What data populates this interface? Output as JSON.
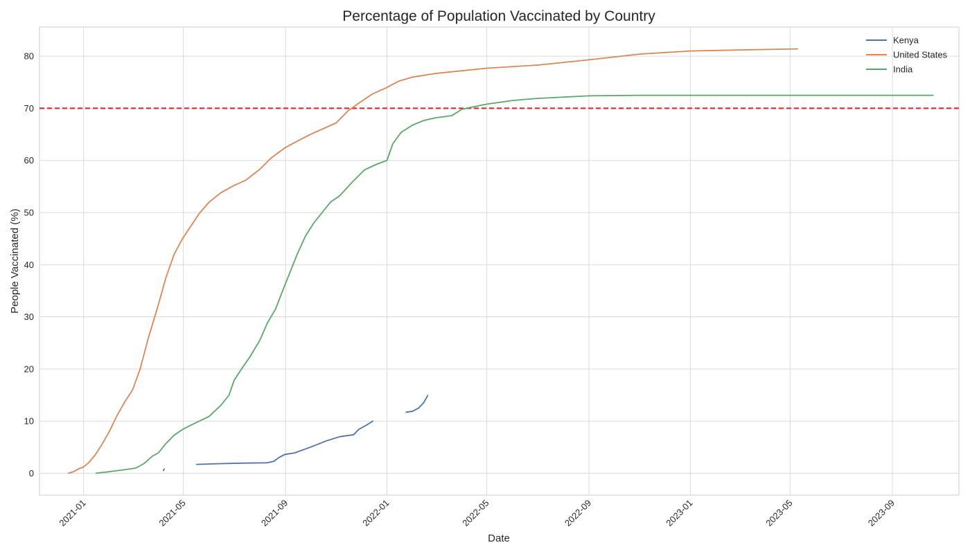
{
  "chart_data": {
    "type": "line",
    "title": "Percentage of Population Vaccinated by Country",
    "xlabel": "Date",
    "ylabel": "People Vaccinated (%)",
    "xlim": [
      "2020-11-09",
      "2023-11-20"
    ],
    "ylim": [
      -4.2,
      85.6
    ],
    "x_ticks": [
      "2021-01",
      "2021-05",
      "2021-09",
      "2022-01",
      "2022-05",
      "2022-09",
      "2023-01",
      "2023-05",
      "2023-09"
    ],
    "y_ticks": [
      0,
      10,
      20,
      30,
      40,
      50,
      60,
      70,
      80
    ],
    "grid": true,
    "legend_position": "top-right",
    "reference_line": {
      "y": 70,
      "color": "#e31a1c",
      "style": "dashed"
    },
    "series": [
      {
        "name": "Kenya",
        "color": "#4c72b0",
        "segments": [
          [
            [
              "2021-04-07",
              0.5
            ],
            [
              "2021-04-08",
              0.8
            ]
          ],
          [
            [
              "2021-05-17",
              1.7
            ],
            [
              "2021-06-15",
              1.85
            ],
            [
              "2021-07-15",
              1.95
            ],
            [
              "2021-08-10",
              2.0
            ],
            [
              "2021-08-18",
              2.3
            ],
            [
              "2021-08-24",
              3.0
            ],
            [
              "2021-08-31",
              3.6
            ],
            [
              "2021-09-12",
              3.9
            ],
            [
              "2021-10-01",
              5.0
            ],
            [
              "2021-10-20",
              6.2
            ],
            [
              "2021-11-05",
              7.0
            ],
            [
              "2021-11-22",
              7.4
            ],
            [
              "2021-11-28",
              8.4
            ],
            [
              "2021-12-07",
              9.2
            ],
            [
              "2021-12-15",
              10.0
            ]
          ],
          [
            [
              "2022-01-24",
              11.7
            ],
            [
              "2022-02-01",
              11.9
            ],
            [
              "2022-02-08",
              12.5
            ],
            [
              "2022-02-14",
              13.5
            ],
            [
              "2022-02-19",
              14.9
            ]
          ]
        ]
      },
      {
        "name": "United States",
        "color": "#dd8452",
        "segments": [
          [
            [
              "2020-12-14",
              0.0
            ],
            [
              "2020-12-20",
              0.3
            ],
            [
              "2020-12-27",
              0.9
            ],
            [
              "2021-01-01",
              1.2
            ],
            [
              "2021-01-07",
              2.0
            ],
            [
              "2021-01-15",
              3.5
            ],
            [
              "2021-01-23",
              5.5
            ],
            [
              "2021-02-01",
              8.0
            ],
            [
              "2021-02-10",
              11.0
            ],
            [
              "2021-02-20",
              13.8
            ],
            [
              "2021-03-01",
              16.0
            ],
            [
              "2021-03-10",
              20.0
            ],
            [
              "2021-03-20",
              26.0
            ],
            [
              "2021-03-31",
              31.8
            ],
            [
              "2021-04-10",
              37.5
            ],
            [
              "2021-04-20",
              42.0
            ],
            [
              "2021-04-30",
              45.0
            ],
            [
              "2021-05-10",
              47.4
            ],
            [
              "2021-05-20",
              49.8
            ],
            [
              "2021-06-01",
              52.0
            ],
            [
              "2021-06-15",
              53.8
            ],
            [
              "2021-07-01",
              55.2
            ],
            [
              "2021-07-15",
              56.2
            ],
            [
              "2021-08-01",
              58.3
            ],
            [
              "2021-08-15",
              60.5
            ],
            [
              "2021-09-01",
              62.5
            ],
            [
              "2021-09-15",
              63.7
            ],
            [
              "2021-10-01",
              65.0
            ],
            [
              "2021-10-15",
              66.0
            ],
            [
              "2021-11-01",
              67.2
            ],
            [
              "2021-11-15",
              69.5
            ],
            [
              "2021-12-01",
              71.3
            ],
            [
              "2021-12-15",
              72.8
            ],
            [
              "2022-01-01",
              74.0
            ],
            [
              "2022-01-15",
              75.2
            ],
            [
              "2022-02-01",
              76.0
            ],
            [
              "2022-03-01",
              76.7
            ],
            [
              "2022-04-01",
              77.2
            ],
            [
              "2022-05-01",
              77.7
            ],
            [
              "2022-07-01",
              78.3
            ],
            [
              "2022-09-01",
              79.3
            ],
            [
              "2022-11-01",
              80.4
            ],
            [
              "2023-01-01",
              81.0
            ],
            [
              "2023-03-01",
              81.2
            ],
            [
              "2023-05-10",
              81.4
            ]
          ]
        ]
      },
      {
        "name": "India",
        "color": "#55a868",
        "segments": [
          [
            [
              "2021-01-16",
              0.0
            ],
            [
              "2021-02-01",
              0.3
            ],
            [
              "2021-02-20",
              0.7
            ],
            [
              "2021-03-05",
              1.0
            ],
            [
              "2021-03-15",
              1.9
            ],
            [
              "2021-03-25",
              3.3
            ],
            [
              "2021-04-01",
              3.9
            ],
            [
              "2021-04-10",
              5.7
            ],
            [
              "2021-04-20",
              7.3
            ],
            [
              "2021-05-01",
              8.5
            ],
            [
              "2021-05-15",
              9.6
            ],
            [
              "2021-06-01",
              10.9
            ],
            [
              "2021-06-15",
              13.0
            ],
            [
              "2021-06-25",
              15.0
            ],
            [
              "2021-07-01",
              17.8
            ],
            [
              "2021-07-10",
              20.0
            ],
            [
              "2021-07-20",
              22.3
            ],
            [
              "2021-08-01",
              25.5
            ],
            [
              "2021-08-10",
              28.8
            ],
            [
              "2021-08-20",
              31.5
            ],
            [
              "2021-08-28",
              34.8
            ],
            [
              "2021-09-05",
              38.0
            ],
            [
              "2021-09-15",
              42.0
            ],
            [
              "2021-09-25",
              45.5
            ],
            [
              "2021-10-05",
              48.0
            ],
            [
              "2021-10-15",
              50.0
            ],
            [
              "2021-10-25",
              52.0
            ],
            [
              "2021-11-05",
              53.2
            ],
            [
              "2021-11-20",
              55.8
            ],
            [
              "2021-12-05",
              58.2
            ],
            [
              "2021-12-20",
              59.3
            ],
            [
              "2022-01-01",
              60.0
            ],
            [
              "2022-01-08",
              63.2
            ],
            [
              "2022-01-18",
              65.4
            ],
            [
              "2022-02-01",
              66.8
            ],
            [
              "2022-02-15",
              67.7
            ],
            [
              "2022-03-01",
              68.2
            ],
            [
              "2022-03-20",
              68.6
            ],
            [
              "2022-04-01",
              69.8
            ],
            [
              "2022-04-15",
              70.3
            ],
            [
              "2022-05-01",
              70.8
            ],
            [
              "2022-06-01",
              71.5
            ],
            [
              "2022-07-01",
              71.9
            ],
            [
              "2022-09-01",
              72.4
            ],
            [
              "2022-11-01",
              72.5
            ],
            [
              "2023-03-01",
              72.5
            ],
            [
              "2023-06-01",
              72.5
            ],
            [
              "2023-10-20",
              72.5
            ]
          ]
        ]
      }
    ]
  }
}
